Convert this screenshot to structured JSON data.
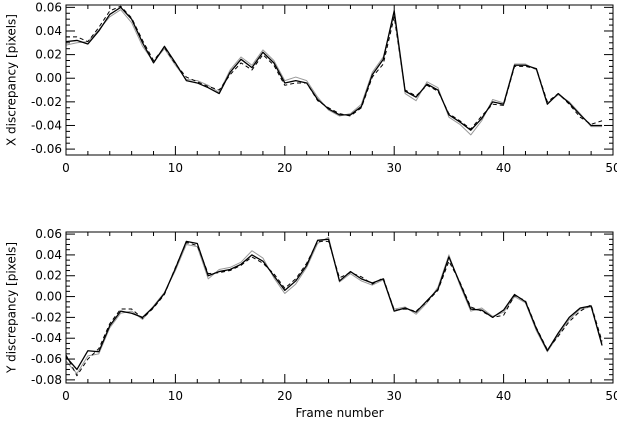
{
  "chart_data": [
    {
      "type": "line",
      "xlabel": "",
      "ylabel": "X discrepancy [pixels]",
      "xlim": [
        0,
        50
      ],
      "ylim": [
        -0.065,
        0.062
      ],
      "xticks": [
        0,
        10,
        20,
        30,
        40,
        50
      ],
      "xtick_labels": [
        "0",
        "10",
        "20",
        "30",
        "40",
        "50"
      ],
      "yticks": [
        -0.06,
        -0.04,
        -0.02,
        0.0,
        0.02,
        0.04,
        0.06
      ],
      "ytick_labels": [
        "-0.06",
        "-0.04",
        "-0.02",
        "0.00",
        "0.02",
        "0.04",
        "0.06"
      ],
      "grid": false,
      "x": [
        0,
        1,
        2,
        3,
        4,
        5,
        6,
        7,
        8,
        9,
        10,
        11,
        12,
        13,
        14,
        15,
        16,
        17,
        18,
        19,
        20,
        21,
        22,
        23,
        24,
        25,
        26,
        27,
        28,
        29,
        30,
        31,
        32,
        33,
        34,
        35,
        36,
        37,
        38,
        39,
        40,
        41,
        42,
        43,
        44,
        45,
        46,
        47,
        48,
        49
      ],
      "series": [
        {
          "style": "solid-black",
          "color": "#000000",
          "values": [
            0.031,
            0.032,
            0.029,
            0.04,
            0.054,
            0.06,
            0.05,
            0.03,
            0.013,
            0.027,
            0.013,
            -0.002,
            -0.004,
            -0.008,
            -0.013,
            0.005,
            0.016,
            0.009,
            0.022,
            0.013,
            -0.004,
            -0.002,
            -0.004,
            -0.018,
            -0.026,
            -0.031,
            -0.031,
            -0.024,
            0.003,
            0.016,
            0.057,
            -0.011,
            -0.016,
            -0.005,
            -0.01,
            -0.031,
            -0.037,
            -0.044,
            -0.034,
            -0.02,
            -0.022,
            0.011,
            0.011,
            0.008,
            -0.022,
            -0.013,
            -0.021,
            -0.031,
            -0.04,
            -0.04
          ]
        },
        {
          "style": "solid-grey",
          "color": "#999999",
          "values": [
            0.028,
            0.03,
            0.031,
            0.041,
            0.052,
            0.058,
            0.047,
            0.027,
            0.014,
            0.025,
            0.011,
            -0.001,
            -0.002,
            -0.006,
            -0.012,
            0.007,
            0.018,
            0.011,
            0.024,
            0.015,
            -0.002,
            0.001,
            -0.002,
            -0.016,
            -0.027,
            -0.032,
            -0.03,
            -0.022,
            0.005,
            0.018,
            0.054,
            -0.013,
            -0.019,
            -0.003,
            -0.008,
            -0.033,
            -0.039,
            -0.048,
            -0.036,
            -0.018,
            -0.021,
            0.012,
            0.012,
            0.007,
            -0.021,
            -0.014,
            -0.02,
            -0.03,
            -0.041,
            -0.041
          ]
        },
        {
          "style": "dashed-black",
          "color": "#000000",
          "values": [
            0.035,
            0.035,
            0.031,
            0.043,
            0.057,
            0.061,
            0.051,
            0.032,
            0.015,
            0.026,
            0.012,
            0.001,
            -0.003,
            -0.007,
            -0.01,
            0.003,
            0.013,
            0.007,
            0.02,
            0.011,
            -0.006,
            -0.004,
            -0.004,
            -0.019,
            -0.025,
            -0.03,
            -0.032,
            -0.025,
            0.001,
            0.012,
            0.052,
            -0.01,
            -0.015,
            -0.006,
            -0.011,
            -0.03,
            -0.036,
            -0.043,
            -0.032,
            -0.022,
            -0.023,
            0.01,
            0.01,
            0.008,
            -0.02,
            -0.013,
            -0.022,
            -0.033,
            -0.039,
            -0.036
          ]
        }
      ]
    },
    {
      "type": "line",
      "xlabel": "Frame number",
      "ylabel": "Y discrepancy [pixels]",
      "xlim": [
        0,
        50
      ],
      "ylim": [
        -0.083,
        0.062
      ],
      "xticks": [
        0,
        10,
        20,
        30,
        40,
        50
      ],
      "xtick_labels": [
        "0",
        "10",
        "20",
        "30",
        "40",
        "50"
      ],
      "yticks": [
        -0.08,
        -0.06,
        -0.04,
        -0.02,
        0.0,
        0.02,
        0.04,
        0.06
      ],
      "ytick_labels": [
        "-0.08",
        "-0.06",
        "-0.04",
        "-0.02",
        "0.00",
        "0.02",
        "0.04",
        "0.06"
      ],
      "grid": false,
      "x": [
        0,
        1,
        2,
        3,
        4,
        5,
        6,
        7,
        8,
        9,
        10,
        11,
        12,
        13,
        14,
        15,
        16,
        17,
        18,
        19,
        20,
        21,
        22,
        23,
        24,
        25,
        26,
        27,
        28,
        29,
        30,
        31,
        32,
        33,
        34,
        35,
        36,
        37,
        38,
        39,
        40,
        41,
        42,
        43,
        44,
        45,
        46,
        47,
        48,
        49
      ],
      "series": [
        {
          "style": "solid-black",
          "color": "#000000",
          "values": [
            -0.058,
            -0.07,
            -0.052,
            -0.053,
            -0.028,
            -0.014,
            -0.016,
            -0.02,
            -0.01,
            0.003,
            0.027,
            0.053,
            0.051,
            0.02,
            0.024,
            0.026,
            0.031,
            0.04,
            0.034,
            0.02,
            0.006,
            0.015,
            0.03,
            0.054,
            0.055,
            0.015,
            0.024,
            0.017,
            0.013,
            0.017,
            -0.014,
            -0.011,
            -0.015,
            -0.004,
            0.007,
            0.038,
            0.013,
            -0.012,
            -0.013,
            -0.02,
            -0.013,
            0.002,
            -0.005,
            -0.031,
            -0.052,
            -0.035,
            -0.02,
            -0.011,
            -0.009,
            -0.047
          ]
        },
        {
          "style": "solid-grey",
          "color": "#999999",
          "values": [
            -0.062,
            -0.074,
            -0.057,
            -0.055,
            -0.03,
            -0.016,
            -0.014,
            -0.022,
            -0.009,
            0.004,
            0.025,
            0.05,
            0.048,
            0.017,
            0.026,
            0.028,
            0.033,
            0.044,
            0.037,
            0.018,
            0.003,
            0.012,
            0.028,
            0.051,
            0.057,
            0.014,
            0.022,
            0.015,
            0.011,
            0.016,
            -0.012,
            -0.01,
            -0.017,
            -0.006,
            0.009,
            0.04,
            0.011,
            -0.014,
            -0.011,
            -0.019,
            -0.015,
            0.0,
            -0.006,
            -0.033,
            -0.053,
            -0.037,
            -0.022,
            -0.012,
            -0.01,
            -0.045
          ]
        },
        {
          "style": "dashed-black",
          "color": "#000000",
          "values": [
            -0.056,
            -0.076,
            -0.06,
            -0.05,
            -0.026,
            -0.012,
            -0.012,
            -0.021,
            -0.011,
            0.002,
            0.028,
            0.052,
            0.049,
            0.022,
            0.023,
            0.025,
            0.03,
            0.038,
            0.032,
            0.022,
            0.008,
            0.017,
            0.032,
            0.053,
            0.053,
            0.018,
            0.023,
            0.019,
            0.012,
            0.018,
            -0.013,
            -0.012,
            -0.014,
            -0.005,
            0.006,
            0.034,
            0.014,
            -0.01,
            -0.014,
            -0.02,
            -0.018,
            0.001,
            -0.004,
            -0.03,
            -0.051,
            -0.038,
            -0.024,
            -0.014,
            -0.008,
            -0.043
          ]
        }
      ]
    }
  ]
}
